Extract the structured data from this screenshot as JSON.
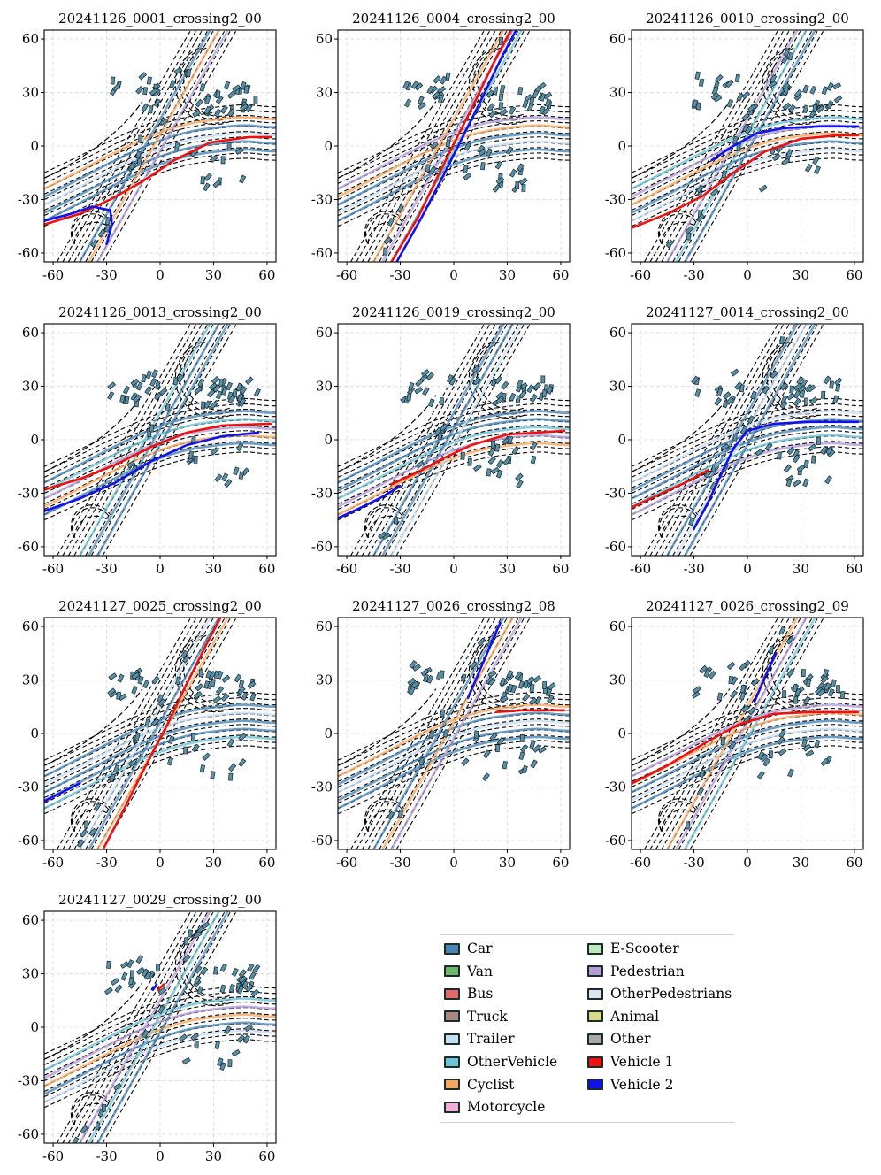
{
  "figure": {
    "legend": [
      {
        "label": "Car",
        "color": "#4a86b5"
      },
      {
        "label": "Van",
        "color": "#6bb86b"
      },
      {
        "label": "Bus",
        "color": "#e16b6b"
      },
      {
        "label": "Truck",
        "color": "#a8897f"
      },
      {
        "label": "Trailer",
        "color": "#c8dff2"
      },
      {
        "label": "OtherVehicle",
        "color": "#6fc2d6"
      },
      {
        "label": "Cyclist",
        "color": "#f5a760"
      },
      {
        "label": "Motorcycle",
        "color": "#f2aed8"
      },
      {
        "label": "E-Scooter",
        "color": "#bfe8bf"
      },
      {
        "label": "Pedestrian",
        "color": "#b39cd6"
      },
      {
        "label": "OtherPedestrians",
        "color": "#dde4ee"
      },
      {
        "label": "Animal",
        "color": "#d8d886"
      },
      {
        "label": "Other",
        "color": "#a8a8a8"
      },
      {
        "label": "Vehicle 1",
        "color": "#ee1111"
      },
      {
        "label": "Vehicle 2",
        "color": "#1111ee"
      }
    ]
  },
  "chart_data": [
    {
      "type": "scatter",
      "title": "20241126_0001_crossing2_00",
      "xlim": [
        -65,
        65
      ],
      "ylim": [
        -65,
        65
      ],
      "xticks": [
        -60,
        -30,
        0,
        30,
        60
      ],
      "yticks": [
        -60,
        -30,
        0,
        30,
        60
      ],
      "grid": true,
      "series": [
        {
          "name": "Vehicle 1",
          "color": "#ee1111",
          "points": [
            [
              -65,
              -44
            ],
            [
              -45,
              -38
            ],
            [
              -28,
              -30
            ],
            [
              -10,
              -20
            ],
            [
              8,
              -8
            ],
            [
              28,
              2
            ],
            [
              50,
              5
            ],
            [
              62,
              5
            ]
          ]
        },
        {
          "name": "Vehicle 2",
          "color": "#1111ee",
          "points": [
            [
              -65,
              -42
            ],
            [
              -50,
              -38
            ],
            [
              -38,
              -34
            ],
            [
              -28,
              -36
            ],
            [
              -27,
              -44
            ],
            [
              -30,
              -55
            ]
          ]
        }
      ]
    },
    {
      "type": "scatter",
      "title": "20241126_0004_crossing2_00",
      "xlim": [
        -65,
        65
      ],
      "ylim": [
        -65,
        65
      ],
      "xticks": [
        -60,
        -30,
        0,
        30,
        60
      ],
      "yticks": [
        -60,
        -30,
        0,
        30,
        60
      ],
      "grid": true,
      "series": [
        {
          "name": "Vehicle 1",
          "color": "#ee1111",
          "points": [
            [
              -35,
              -65
            ],
            [
              -20,
              -40
            ],
            [
              -8,
              -15
            ],
            [
              2,
              5
            ],
            [
              12,
              25
            ],
            [
              24,
              50
            ],
            [
              32,
              65
            ]
          ]
        },
        {
          "name": "Vehicle 2",
          "color": "#1111ee",
          "points": [
            [
              -32,
              -65
            ],
            [
              -18,
              -40
            ],
            [
              -5,
              -15
            ],
            [
              5,
              5
            ],
            [
              15,
              25
            ],
            [
              27,
              50
            ],
            [
              35,
              65
            ]
          ]
        }
      ]
    },
    {
      "type": "scatter",
      "title": "20241126_0010_crossing2_00",
      "xlim": [
        -65,
        65
      ],
      "ylim": [
        -65,
        65
      ],
      "xticks": [
        -60,
        -30,
        0,
        30,
        60
      ],
      "yticks": [
        -60,
        -30,
        0,
        30,
        60
      ],
      "grid": true,
      "series": [
        {
          "name": "Vehicle 1",
          "color": "#ee1111",
          "points": [
            [
              -65,
              -46
            ],
            [
              -45,
              -38
            ],
            [
              -25,
              -28
            ],
            [
              -8,
              -15
            ],
            [
              10,
              -3
            ],
            [
              30,
              4
            ],
            [
              50,
              6
            ],
            [
              62,
              6
            ]
          ]
        },
        {
          "name": "Vehicle 2",
          "color": "#1111ee",
          "points": [
            [
              -20,
              -8
            ],
            [
              -8,
              0
            ],
            [
              5,
              7
            ],
            [
              20,
              10
            ],
            [
              40,
              11
            ],
            [
              62,
              11
            ]
          ]
        }
      ]
    },
    {
      "type": "scatter",
      "title": "20241126_0013_crossing2_00",
      "xlim": [
        -65,
        65
      ],
      "ylim": [
        -65,
        65
      ],
      "xticks": [
        -60,
        -30,
        0,
        30,
        60
      ],
      "yticks": [
        -60,
        -30,
        0,
        30,
        60
      ],
      "grid": true,
      "series": [
        {
          "name": "Vehicle 1",
          "color": "#ee1111",
          "points": [
            [
              -65,
              -28
            ],
            [
              -45,
              -22
            ],
            [
              -25,
              -14
            ],
            [
              -5,
              -4
            ],
            [
              15,
              4
            ],
            [
              35,
              8
            ],
            [
              62,
              9
            ]
          ]
        },
        {
          "name": "Vehicle 2",
          "color": "#1111ee",
          "points": [
            [
              -65,
              -40
            ],
            [
              -45,
              -33
            ],
            [
              -25,
              -24
            ],
            [
              -5,
              -12
            ],
            [
              15,
              -3
            ],
            [
              35,
              2
            ],
            [
              55,
              4
            ]
          ]
        }
      ]
    },
    {
      "type": "scatter",
      "title": "20241126_0019_crossing2_00",
      "xlim": [
        -65,
        65
      ],
      "ylim": [
        -65,
        65
      ],
      "xticks": [
        -60,
        -30,
        0,
        30,
        60
      ],
      "yticks": [
        -60,
        -30,
        0,
        30,
        60
      ],
      "grid": true,
      "series": [
        {
          "name": "Vehicle 1",
          "color": "#ee1111",
          "points": [
            [
              -35,
              -25
            ],
            [
              -20,
              -18
            ],
            [
              -5,
              -10
            ],
            [
              10,
              -3
            ],
            [
              30,
              3
            ],
            [
              62,
              5
            ]
          ]
        },
        {
          "name": "Vehicle 2",
          "color": "#1111ee",
          "points": [
            [
              -65,
              -44
            ],
            [
              -52,
              -38
            ],
            [
              -40,
              -32
            ],
            [
              -30,
              -26
            ]
          ]
        }
      ]
    },
    {
      "type": "scatter",
      "title": "20241127_0014_crossing2_00",
      "xlim": [
        -65,
        65
      ],
      "ylim": [
        -65,
        65
      ],
      "xticks": [
        -60,
        -30,
        0,
        30,
        60
      ],
      "yticks": [
        -60,
        -30,
        0,
        30,
        60
      ],
      "grid": true,
      "series": [
        {
          "name": "Vehicle 1",
          "color": "#ee1111",
          "points": [
            [
              -65,
              -38
            ],
            [
              -48,
              -30
            ],
            [
              -35,
              -24
            ],
            [
              -22,
              -17
            ]
          ]
        },
        {
          "name": "Vehicle 2",
          "color": "#1111ee",
          "points": [
            [
              -30,
              -50
            ],
            [
              -22,
              -35
            ],
            [
              -15,
              -20
            ],
            [
              -8,
              -5
            ],
            [
              0,
              5
            ],
            [
              15,
              9
            ],
            [
              35,
              10
            ],
            [
              62,
              10
            ]
          ]
        }
      ]
    },
    {
      "type": "scatter",
      "title": "20241127_0025_crossing2_00",
      "xlim": [
        -65,
        65
      ],
      "ylim": [
        -65,
        65
      ],
      "xticks": [
        -60,
        -30,
        0,
        30,
        60
      ],
      "yticks": [
        -60,
        -30,
        0,
        30,
        60
      ],
      "grid": true,
      "series": [
        {
          "name": "Vehicle 1",
          "color": "#ee1111",
          "points": [
            [
              -32,
              -65
            ],
            [
              -20,
              -42
            ],
            [
              -8,
              -18
            ],
            [
              4,
              5
            ],
            [
              15,
              28
            ],
            [
              26,
              50
            ],
            [
              34,
              65
            ]
          ]
        },
        {
          "name": "Vehicle 2",
          "color": "#1111ee",
          "points": [
            [
              -65,
              -38
            ],
            [
              -55,
              -33
            ],
            [
              -45,
              -28
            ]
          ]
        }
      ]
    },
    {
      "type": "scatter",
      "title": "20241127_0026_crossing2_08",
      "xlim": [
        -65,
        65
      ],
      "ylim": [
        -65,
        65
      ],
      "xticks": [
        -60,
        -30,
        0,
        30,
        60
      ],
      "yticks": [
        -60,
        -30,
        0,
        30,
        60
      ],
      "grid": true,
      "series": [
        {
          "name": "Vehicle 1",
          "color": "#ee1111",
          "points": [
            [
              24,
              12
            ],
            [
              38,
              13
            ],
            [
              50,
              13
            ],
            [
              62,
              13
            ]
          ]
        },
        {
          "name": "Vehicle 2",
          "color": "#1111ee",
          "points": [
            [
              8,
              20
            ],
            [
              14,
              34
            ],
            [
              20,
              48
            ],
            [
              26,
              62
            ]
          ]
        }
      ]
    },
    {
      "type": "scatter",
      "title": "20241127_0026_crossing2_09",
      "xlim": [
        -65,
        65
      ],
      "ylim": [
        -65,
        65
      ],
      "xticks": [
        -60,
        -30,
        0,
        30,
        60
      ],
      "yticks": [
        -60,
        -30,
        0,
        30,
        60
      ],
      "grid": true,
      "series": [
        {
          "name": "Vehicle 1",
          "color": "#ee1111",
          "points": [
            [
              -65,
              -28
            ],
            [
              -45,
              -18
            ],
            [
              -25,
              -6
            ],
            [
              -5,
              5
            ],
            [
              15,
              11
            ],
            [
              35,
              12
            ],
            [
              62,
              12
            ]
          ]
        },
        {
          "name": "Vehicle 2",
          "color": "#1111ee",
          "points": [
            [
              4,
              18
            ],
            [
              10,
              32
            ],
            [
              16,
              45
            ]
          ]
        }
      ]
    },
    {
      "type": "scatter",
      "title": "20241127_0029_crossing2_00",
      "xlim": [
        -65,
        65
      ],
      "ylim": [
        -65,
        65
      ],
      "xticks": [
        -60,
        -30,
        0,
        30,
        60
      ],
      "yticks": [
        -60,
        -30,
        0,
        30,
        60
      ],
      "grid": true,
      "series": [
        {
          "name": "Vehicle 1",
          "color": "#ee1111",
          "points": [
            [
              -1,
              21
            ],
            [
              2,
              24
            ]
          ]
        },
        {
          "name": "Vehicle 2",
          "color": "#1111ee",
          "points": [
            [
              -4,
              21
            ],
            [
              -2,
              24
            ]
          ]
        }
      ]
    }
  ]
}
